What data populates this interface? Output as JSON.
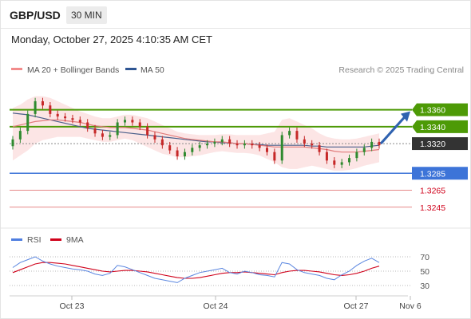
{
  "header": {
    "symbol": "GBP/USD",
    "timeframe": "30 MIN"
  },
  "timestamp": "Monday, October 27, 2025 4:10:35 AM CET",
  "legend": {
    "ma_bb": "MA 20 + Bollinger Bands",
    "ma50": "MA 50",
    "credit": "Research © 2025 Trading Central"
  },
  "rsi_legend": {
    "rsi": "RSI",
    "ma9": "9MA"
  },
  "colors": {
    "green": "#4d9a06",
    "blue": "#3d74d8",
    "red": "#e06b6b",
    "navy": "#2f5693",
    "band": "#fbe0e0"
  },
  "chart_data": {
    "type": "candlestick",
    "price": {
      "ylim": [
        1.3225,
        1.3385
      ],
      "levels": [
        {
          "label": "1.3360",
          "value": 1.336,
          "kind": "resistance"
        },
        {
          "label": "1.3340",
          "value": 1.334,
          "kind": "resistance"
        },
        {
          "label": "1.3320",
          "value": 1.332,
          "kind": "last"
        },
        {
          "label": "1.3285",
          "value": 1.3285,
          "kind": "pivot"
        },
        {
          "label": "1.3265",
          "value": 1.3265,
          "kind": "support"
        },
        {
          "label": "1.3245",
          "value": 1.3245,
          "kind": "support"
        }
      ],
      "forecast_arrow": {
        "from": 1.332,
        "to": 1.336
      },
      "closes": [
        1.3325,
        1.3335,
        1.3355,
        1.337,
        1.3365,
        1.3355,
        1.3352,
        1.335,
        1.3348,
        1.3345,
        1.3338,
        1.3332,
        1.3328,
        1.333,
        1.3345,
        1.3348,
        1.3345,
        1.334,
        1.333,
        1.3325,
        1.3318,
        1.3312,
        1.3305,
        1.331,
        1.3315,
        1.3318,
        1.332,
        1.3322,
        1.3325,
        1.332,
        1.3318,
        1.332,
        1.3318,
        1.3315,
        1.331,
        1.33,
        1.333,
        1.3335,
        1.3325,
        1.332,
        1.3318,
        1.331,
        1.33,
        1.3295,
        1.3298,
        1.3303,
        1.331,
        1.3315,
        1.3322,
        1.3318
      ],
      "ma20": [
        1.334,
        1.3342,
        1.3344,
        1.3346,
        1.3347,
        1.3348,
        1.3348,
        1.3347,
        1.3346,
        1.3345,
        1.3343,
        1.3341,
        1.334,
        1.3339,
        1.3339,
        1.3339,
        1.3338,
        1.3337,
        1.3336,
        1.3334,
        1.3332,
        1.333,
        1.3328,
        1.3326,
        1.3325,
        1.3324,
        1.3323,
        1.3322,
        1.3322,
        1.3321,
        1.332,
        1.332,
        1.3319,
        1.3318,
        1.3317,
        1.3316,
        1.3316,
        1.3316,
        1.3316,
        1.3316,
        1.3315,
        1.3314,
        1.3313,
        1.3311,
        1.331,
        1.331,
        1.331,
        1.3311,
        1.3312,
        1.3313
      ],
      "ma50": [
        1.3356,
        1.3355,
        1.3354,
        1.3352,
        1.335,
        1.3348,
        1.3346,
        1.3344,
        1.3342,
        1.334,
        1.3338,
        1.3337,
        1.3336,
        1.3335,
        1.3334,
        1.3333,
        1.3332,
        1.3331,
        1.333,
        1.3329,
        1.3328,
        1.3327,
        1.3326,
        1.3325,
        1.3324,
        1.3323,
        1.3322,
        1.3322,
        1.3321,
        1.3321,
        1.332,
        1.332,
        1.3319,
        1.3319,
        1.3318,
        1.3318,
        1.3318,
        1.3318,
        1.3318,
        1.3318,
        1.3317,
        1.3317,
        1.3316,
        1.3316,
        1.3316,
        1.3316,
        1.3316,
        1.3316,
        1.3317,
        1.3318
      ],
      "bb_upper": [
        1.3362,
        1.3366,
        1.3372,
        1.3376,
        1.3376,
        1.3374,
        1.337,
        1.3366,
        1.3362,
        1.3358,
        1.3355,
        1.3352,
        1.335,
        1.335,
        1.3352,
        1.3354,
        1.3354,
        1.3352,
        1.335,
        1.3346,
        1.3342,
        1.3338,
        1.3334,
        1.3332,
        1.3331,
        1.333,
        1.333,
        1.333,
        1.3331,
        1.3331,
        1.333,
        1.333,
        1.333,
        1.333,
        1.3332,
        1.3334,
        1.3348,
        1.335,
        1.3346,
        1.3342,
        1.3338,
        1.3332,
        1.3328,
        1.3326,
        1.3325,
        1.3325,
        1.3326,
        1.3328,
        1.333,
        1.3332
      ],
      "bb_lower": [
        1.33,
        1.3306,
        1.3312,
        1.332,
        1.3324,
        1.3326,
        1.3328,
        1.3328,
        1.3328,
        1.3328,
        1.3326,
        1.3324,
        1.3322,
        1.3322,
        1.3324,
        1.3326,
        1.3324,
        1.332,
        1.3316,
        1.3312,
        1.3308,
        1.3306,
        1.3304,
        1.3304,
        1.3305,
        1.3306,
        1.3308,
        1.331,
        1.3311,
        1.331,
        1.3309,
        1.3309,
        1.3308,
        1.3306,
        1.3302,
        1.3298,
        1.3292,
        1.329,
        1.329,
        1.3292,
        1.3294,
        1.3292,
        1.329,
        1.3288,
        1.3288,
        1.3289,
        1.3291,
        1.3294,
        1.3296,
        1.3298
      ]
    },
    "rsi": {
      "ylim": [
        20,
        80
      ],
      "levels": [
        {
          "label": "70",
          "value": 70
        },
        {
          "label": "50",
          "value": 50
        },
        {
          "label": "30",
          "value": 30
        }
      ],
      "rsi": [
        55,
        62,
        66,
        70,
        64,
        60,
        57,
        55,
        53,
        52,
        50,
        46,
        44,
        47,
        58,
        56,
        52,
        48,
        44,
        40,
        38,
        36,
        34,
        40,
        44,
        48,
        50,
        52,
        54,
        48,
        46,
        50,
        48,
        45,
        44,
        42,
        62,
        60,
        52,
        48,
        46,
        44,
        40,
        38,
        45,
        50,
        58,
        64,
        68,
        62
      ],
      "ma9": [
        48,
        52,
        56,
        60,
        62,
        62,
        61,
        60,
        58,
        56,
        54,
        52,
        50,
        49,
        50,
        51,
        51,
        50,
        49,
        47,
        45,
        43,
        41,
        40,
        40,
        41,
        43,
        45,
        47,
        48,
        48,
        49,
        48,
        47,
        46,
        45,
        48,
        50,
        51,
        51,
        50,
        49,
        47,
        45,
        44,
        45,
        47,
        50,
        54,
        57
      ]
    },
    "x_ticks": [
      "Oct 23",
      "Oct 24",
      "Oct 27",
      "Nov 6"
    ]
  }
}
